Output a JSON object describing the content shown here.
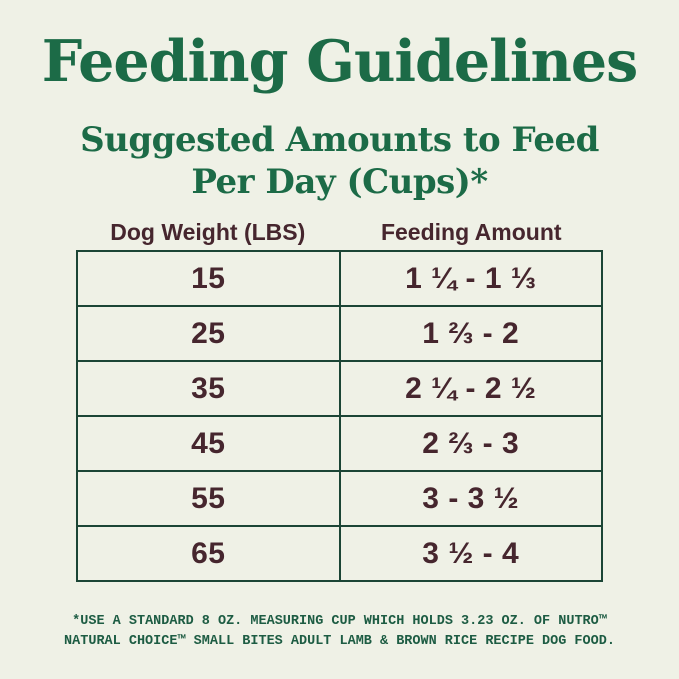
{
  "chart_data": {
    "type": "table",
    "title": "Feeding Guidelines",
    "subtitle_line1": "Suggested Amounts to Feed",
    "subtitle_line2": "Per Day (Cups)*",
    "columns": [
      "Dog Weight (LBS)",
      "Feeding Amount"
    ],
    "rows": [
      [
        "15",
        "1 ¼ - 1 ⅓"
      ],
      [
        "25",
        "1 ⅔ - 2"
      ],
      [
        "35",
        "2 ¼ - 2 ½"
      ],
      [
        "45",
        "2 ⅔ - 3"
      ],
      [
        "55",
        "3 - 3 ½"
      ],
      [
        "65",
        "3 ½ - 4"
      ]
    ],
    "footnote_line1": "*USE A STANDARD 8 OZ. MEASURING CUP WHICH HOLDS 3.23 OZ. OF NUTRO™",
    "footnote_line2": "NATURAL CHOICE™ SMALL BITES ADULT LAMB & BROWN RICE RECIPE DOG FOOD."
  },
  "colors": {
    "background": "#eff1e6",
    "heading_green": "#1c6b47",
    "table_border_green": "#1b4535",
    "value_brown": "#46262e",
    "footnote_green": "#1d5c43"
  }
}
